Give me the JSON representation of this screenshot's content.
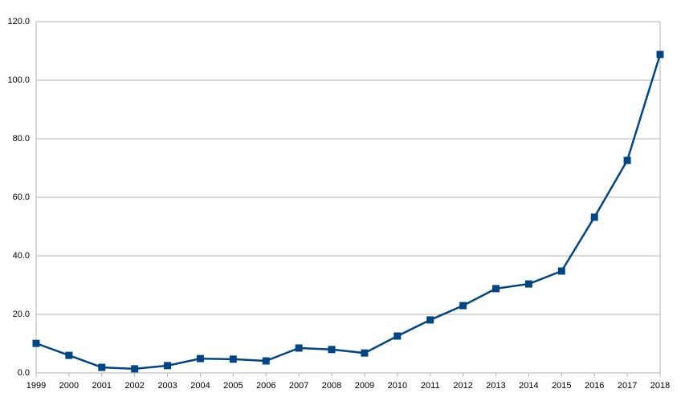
{
  "chart_data": {
    "type": "line",
    "categories": [
      "1999",
      "2000",
      "2001",
      "2002",
      "2003",
      "2004",
      "2005",
      "2006",
      "2007",
      "2008",
      "2009",
      "2010",
      "2011",
      "2012",
      "2013",
      "2014",
      "2015",
      "2016",
      "2017",
      "2018"
    ],
    "series": [
      {
        "color": "#004586",
        "values": [
          10.1,
          6.0,
          1.9,
          1.4,
          2.5,
          4.9,
          4.7,
          4.1,
          8.5,
          8.0,
          6.8,
          12.6,
          18.1,
          23.0,
          28.8,
          30.4,
          34.8,
          53.2,
          72.6,
          108.8
        ]
      }
    ],
    "ylim": [
      0,
      120
    ],
    "yticks": [
      {
        "value": 0,
        "label": "0.0"
      },
      {
        "value": 20,
        "label": "20.0"
      },
      {
        "value": 40,
        "label": "40.0"
      },
      {
        "value": 60,
        "label": "60.0"
      },
      {
        "value": 80,
        "label": "80.0"
      },
      {
        "value": 100,
        "label": "100.0"
      },
      {
        "value": 120,
        "label": "120.0"
      }
    ],
    "grid": true
  }
}
